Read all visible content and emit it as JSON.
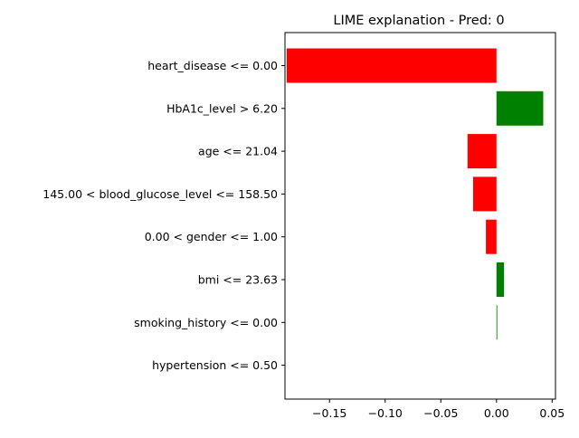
{
  "chart_data": {
    "type": "bar",
    "orientation": "horizontal",
    "title": "LIME explanation - Pred: 0",
    "xlabel": "",
    "ylabel": "",
    "xlim": [
      -0.19,
      0.053
    ],
    "xticks": [
      -0.15,
      -0.1,
      -0.05,
      0.0,
      0.05
    ],
    "xtick_labels": [
      "−0.15",
      "−0.10",
      "−0.05",
      "0.00",
      "0.05"
    ],
    "grid": false,
    "legend": "none",
    "positive_color": "#008000",
    "negative_color": "#ff0000",
    "categories": [
      "heart_disease <= 0.00",
      "HbA1c_level > 6.20",
      "age <= 21.04",
      "145.00 < blood_glucose_level <= 158.50",
      "0.00 < gender <= 1.00",
      "bmi <= 23.63",
      "smoking_history <= 0.00",
      "hypertension <= 0.50"
    ],
    "values": [
      -0.1885,
      0.042,
      -0.026,
      -0.021,
      -0.0095,
      0.0068,
      0.0007,
      0.0
    ]
  }
}
